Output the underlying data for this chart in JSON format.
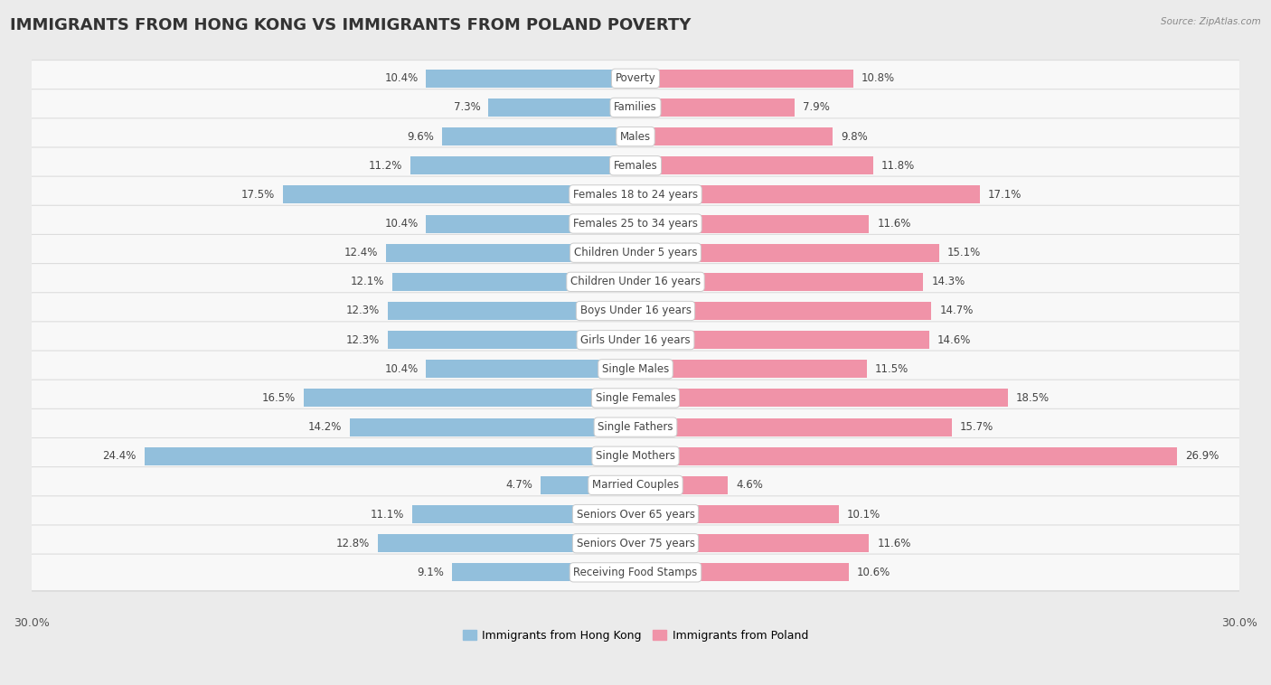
{
  "title": "IMMIGRANTS FROM HONG KONG VS IMMIGRANTS FROM POLAND POVERTY",
  "source": "Source: ZipAtlas.com",
  "categories": [
    "Poverty",
    "Families",
    "Males",
    "Females",
    "Females 18 to 24 years",
    "Females 25 to 34 years",
    "Children Under 5 years",
    "Children Under 16 years",
    "Boys Under 16 years",
    "Girls Under 16 years",
    "Single Males",
    "Single Females",
    "Single Fathers",
    "Single Mothers",
    "Married Couples",
    "Seniors Over 65 years",
    "Seniors Over 75 years",
    "Receiving Food Stamps"
  ],
  "hong_kong": [
    10.4,
    7.3,
    9.6,
    11.2,
    17.5,
    10.4,
    12.4,
    12.1,
    12.3,
    12.3,
    10.4,
    16.5,
    14.2,
    24.4,
    4.7,
    11.1,
    12.8,
    9.1
  ],
  "poland": [
    10.8,
    7.9,
    9.8,
    11.8,
    17.1,
    11.6,
    15.1,
    14.3,
    14.7,
    14.6,
    11.5,
    18.5,
    15.7,
    26.9,
    4.6,
    10.1,
    11.6,
    10.6
  ],
  "hk_color": "#92bfdc",
  "poland_color": "#f093a8",
  "bg_color": "#ebebeb",
  "row_bg": "#f8f8f8",
  "row_border": "#dddddd",
  "x_max": 30.0,
  "legend_hk": "Immigrants from Hong Kong",
  "legend_poland": "Immigrants from Poland",
  "title_fontsize": 13,
  "label_fontsize": 8.5,
  "value_fontsize": 8.5,
  "axis_label_fontsize": 9
}
